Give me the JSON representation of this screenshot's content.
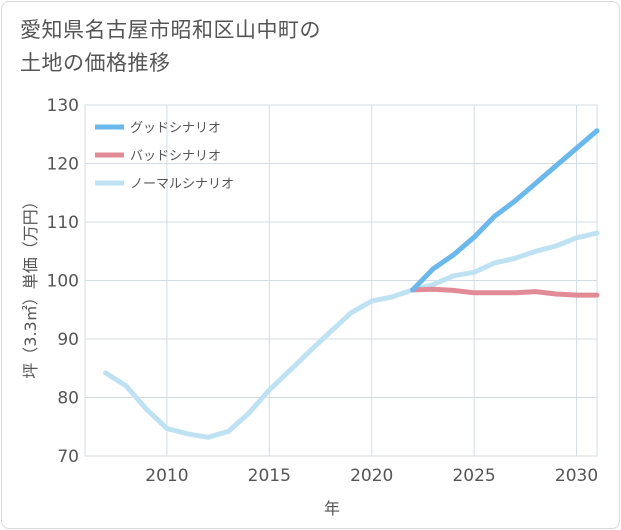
{
  "title": {
    "line1": "愛知県名古屋市昭和区山中町の",
    "line2": "土地の価格推移"
  },
  "chart_data": {
    "type": "line",
    "xlabel": "年",
    "ylabel": "坪（3.3㎡）単価（万円）",
    "xlim": [
      2006,
      2031
    ],
    "ylim": [
      70,
      130
    ],
    "x_ticks": [
      2010,
      2015,
      2020,
      2025,
      2030
    ],
    "y_ticks": [
      70,
      80,
      90,
      100,
      110,
      120,
      130
    ],
    "grid": true,
    "legend_position": "top-left",
    "series": [
      {
        "name": "グッドシナリオ",
        "color": "#6bb8ec",
        "x": [
          2022,
          2023,
          2024,
          2025,
          2026,
          2027,
          2028,
          2029,
          2030,
          2031
        ],
        "values": [
          98.4,
          102.0,
          104.4,
          107.4,
          111.0,
          113.6,
          116.6,
          119.6,
          122.6,
          125.6
        ]
      },
      {
        "name": "バッドシナリオ",
        "color": "#e08b96",
        "x": [
          2022,
          2023,
          2024,
          2025,
          2026,
          2027,
          2028,
          2029,
          2030,
          2031
        ],
        "values": [
          98.4,
          98.5,
          98.3,
          97.9,
          97.9,
          97.9,
          98.1,
          97.7,
          97.5,
          97.5
        ]
      },
      {
        "name": "ノーマルシナリオ",
        "color": "#bfe2f3",
        "x": [
          2007,
          2008,
          2009,
          2010,
          2011,
          2012,
          2013,
          2014,
          2015,
          2016,
          2017,
          2018,
          2019,
          2020,
          2021,
          2022,
          2023,
          2024,
          2025,
          2026,
          2027,
          2028,
          2029,
          2030,
          2031
        ],
        "values": [
          84.2,
          82.0,
          78.0,
          74.7,
          73.8,
          73.2,
          74.2,
          77.3,
          81.3,
          84.6,
          88.0,
          91.3,
          94.5,
          96.5,
          97.2,
          98.4,
          99.3,
          100.8,
          101.4,
          103.0,
          103.8,
          105.0,
          105.9,
          107.3,
          108.1
        ]
      }
    ]
  }
}
